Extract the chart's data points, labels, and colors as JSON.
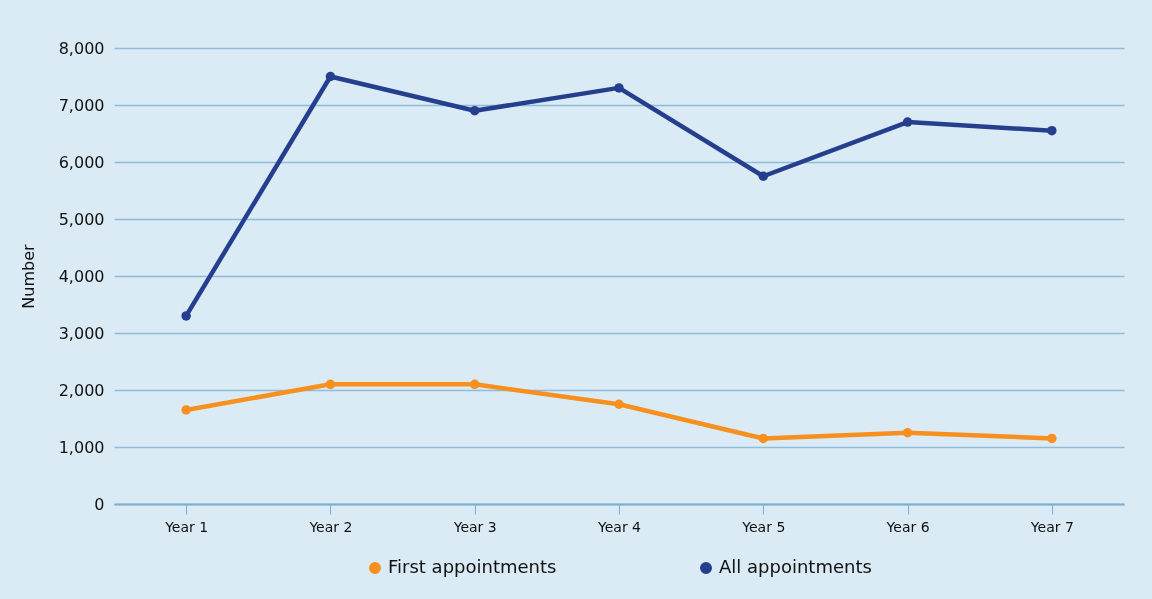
{
  "chart_data": {
    "type": "line",
    "ylabel": "Number",
    "categories": [
      "Year 1",
      "Year 2",
      "Year 3",
      "Year 4",
      "Year 5",
      "Year 6",
      "Year 7"
    ],
    "series": [
      {
        "name": "First appointments",
        "color": "#f7901e",
        "values": [
          1650,
          2100,
          2100,
          1750,
          1150,
          1250,
          1150
        ]
      },
      {
        "name": "All appointments",
        "color": "#253f8e",
        "values": [
          3300,
          7500,
          6900,
          7300,
          5750,
          6700,
          6550
        ]
      }
    ],
    "ylim": [
      0,
      8000
    ],
    "yticks": [
      {
        "value": 0,
        "label": "0"
      },
      {
        "value": 1000,
        "label": "1,000"
      },
      {
        "value": 2000,
        "label": "2,000"
      },
      {
        "value": 3000,
        "label": "3,000"
      },
      {
        "value": 4000,
        "label": "4,000"
      },
      {
        "value": 5000,
        "label": "5,000"
      },
      {
        "value": 6000,
        "label": "6,000"
      },
      {
        "value": 7000,
        "label": "7,000"
      },
      {
        "value": 8000,
        "label": "8,000"
      }
    ],
    "grid": "y",
    "legend": "bottom",
    "marker": "circle",
    "line_style": "solid"
  }
}
